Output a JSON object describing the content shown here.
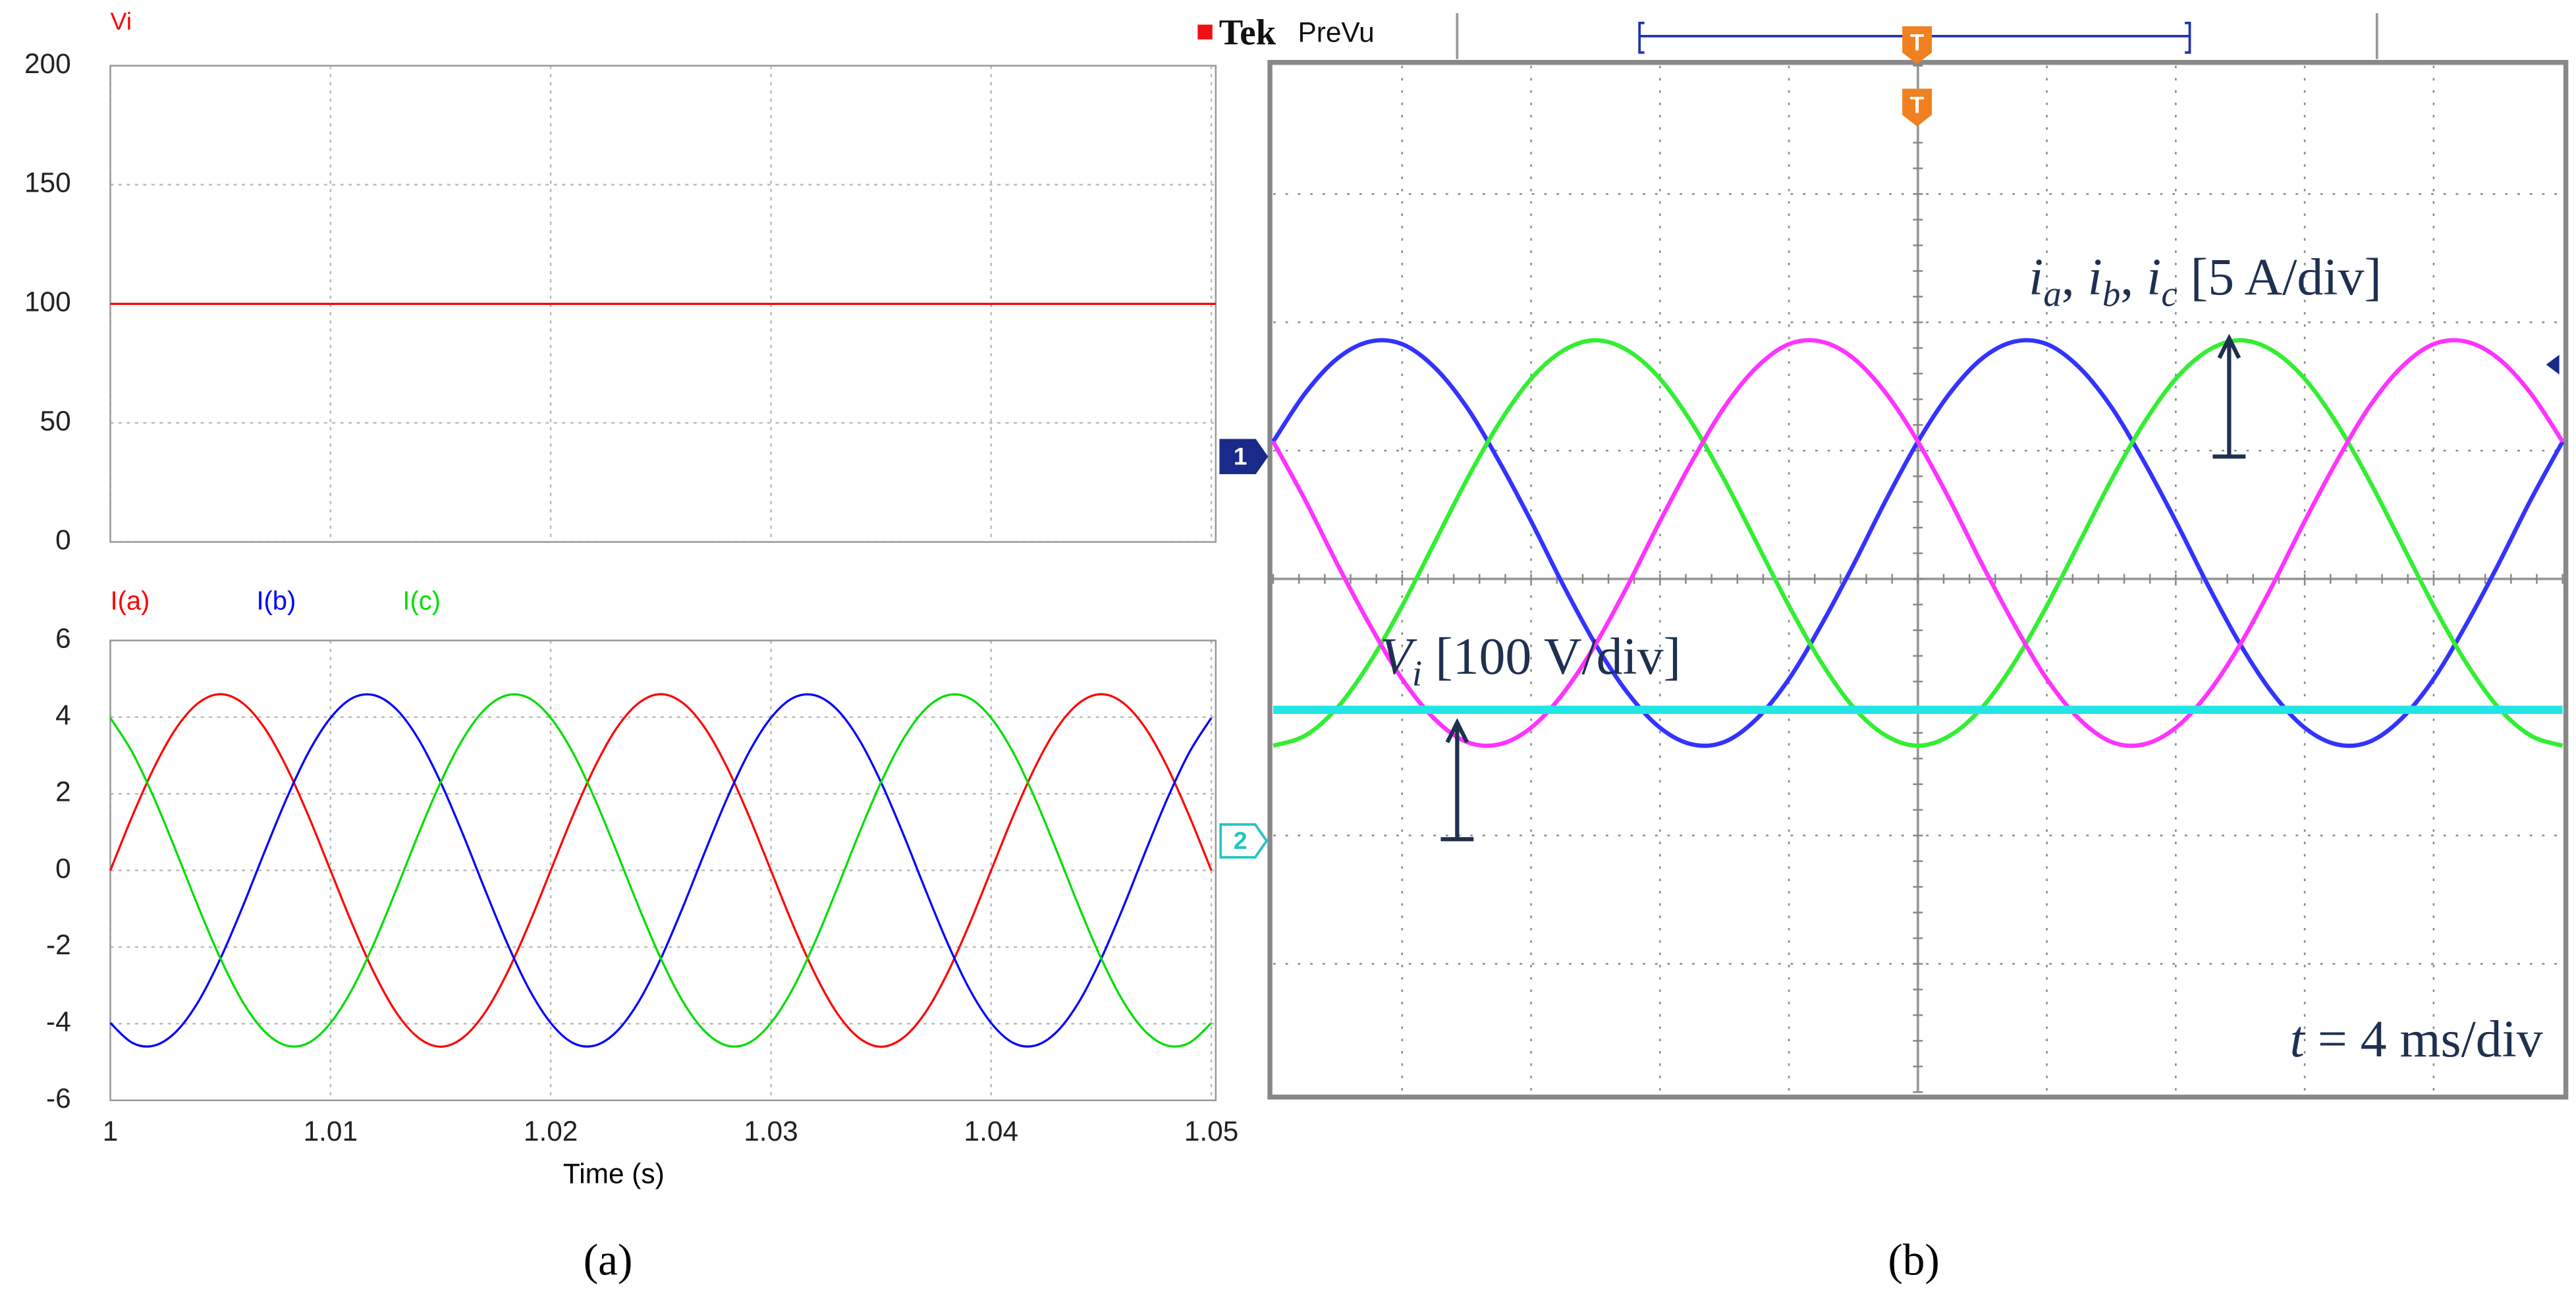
{
  "chart_data": [
    {
      "type": "line",
      "title": "Vi",
      "color": "#ff0000",
      "x": [
        1,
        1.0502
      ],
      "values": [
        100,
        100
      ],
      "xlim": [
        1,
        1.0502
      ],
      "xticks": [
        1,
        1.01,
        1.02,
        1.03,
        1.04,
        1.05
      ],
      "ylim": [
        0,
        200
      ],
      "yticks": [
        0,
        50,
        100,
        150,
        200
      ],
      "grid": true
    },
    {
      "type": "line",
      "xlabel": "Time (s)",
      "x": [
        1,
        1.001,
        1.002,
        1.003,
        1.004,
        1.005,
        1.006,
        1.007,
        1.008,
        1.009,
        1.01,
        1.011,
        1.012,
        1.013,
        1.014,
        1.015,
        1.016,
        1.017,
        1.018,
        1.019,
        1.02,
        1.021,
        1.022,
        1.023,
        1.024,
        1.025,
        1.026,
        1.027,
        1.028,
        1.029,
        1.03,
        1.031,
        1.032,
        1.033,
        1.034,
        1.035,
        1.036,
        1.037,
        1.038,
        1.039,
        1.04,
        1.041,
        1.042,
        1.043,
        1.044,
        1.045,
        1.046,
        1.047,
        1.048,
        1.049,
        1.05
      ],
      "series": [
        {
          "name": "I(a)",
          "color": "#ff0000",
          "values": [
            0,
            1.42,
            2.7,
            3.72,
            4.37,
            4.6,
            4.37,
            3.72,
            2.7,
            1.42,
            0,
            -1.42,
            -2.7,
            -3.72,
            -4.37,
            -4.6,
            -4.37,
            -3.72,
            -2.7,
            -1.42,
            0,
            1.42,
            2.7,
            3.72,
            4.37,
            4.6,
            4.37,
            3.72,
            2.7,
            1.42,
            0,
            -1.42,
            -2.7,
            -3.72,
            -4.37,
            -4.6,
            -4.37,
            -3.72,
            -2.7,
            -1.42,
            0,
            1.42,
            2.7,
            3.72,
            4.37,
            4.6,
            4.37,
            3.72,
            2.7,
            1.42,
            0
          ]
        },
        {
          "name": "I(b)",
          "color": "#0000ff",
          "values": [
            -3.98,
            -4.5,
            -4.57,
            -4.2,
            -3.42,
            -2.3,
            -0.96,
            0.48,
            1.87,
            3.08,
            3.98,
            4.5,
            4.57,
            4.2,
            3.42,
            2.3,
            0.96,
            -0.48,
            -1.87,
            -3.08,
            -3.98,
            -4.5,
            -4.57,
            -4.2,
            -3.42,
            -2.3,
            -0.96,
            0.48,
            1.87,
            3.08,
            3.98,
            4.5,
            4.57,
            4.2,
            3.42,
            2.3,
            0.96,
            -0.48,
            -1.87,
            -3.08,
            -3.98,
            -4.5,
            -4.57,
            -4.2,
            -3.42,
            -2.3,
            -0.96,
            0.48,
            1.87,
            3.08,
            3.98
          ]
        },
        {
          "name": "I(c)",
          "color": "#00dd00",
          "values": [
            3.98,
            3.08,
            1.87,
            0.48,
            -0.96,
            -2.3,
            -3.42,
            -4.2,
            -4.57,
            -4.5,
            -3.98,
            -3.08,
            -1.87,
            -0.48,
            0.96,
            2.3,
            3.42,
            4.2,
            4.57,
            4.5,
            3.98,
            3.08,
            1.87,
            0.48,
            -0.96,
            -2.3,
            -3.42,
            -4.2,
            -4.57,
            -4.5,
            -3.98,
            -3.08,
            -1.87,
            -0.48,
            0.96,
            2.3,
            3.42,
            4.2,
            4.57,
            4.5,
            3.98,
            3.08,
            1.87,
            0.48,
            -0.96,
            -2.3,
            -3.42,
            -4.2,
            -4.57,
            -4.5,
            -3.98
          ]
        }
      ],
      "xlim": [
        1,
        1.0502
      ],
      "xticks": [
        1,
        1.01,
        1.02,
        1.03,
        1.04,
        1.05
      ],
      "ylim": [
        -6,
        6
      ],
      "yticks": [
        -6,
        -4,
        -2,
        0,
        2,
        4,
        6
      ],
      "grid": true
    },
    {
      "type": "scope",
      "header": "Tek",
      "mode": "PreVu",
      "trigger": "T",
      "channels": [
        "1",
        "2"
      ],
      "x": [
        0,
        1,
        2,
        3,
        4,
        5,
        6,
        7,
        8,
        9,
        10,
        11,
        12,
        13,
        14,
        15,
        16,
        17,
        18,
        19,
        20,
        21,
        22,
        23,
        24,
        25,
        26,
        27,
        28,
        29,
        30,
        31,
        32,
        33,
        34,
        35,
        36,
        37,
        38,
        39,
        40
      ],
      "xlim": [
        0,
        40
      ],
      "ylim": [
        -4,
        4
      ],
      "series": [
        {
          "color": "#3333ff",
          "values": [
            1.07,
            1.45,
            1.72,
            1.85,
            1.83,
            1.65,
            1.34,
            0.92,
            0.45,
            -0.05,
            -0.51,
            -0.89,
            -1.16,
            -1.29,
            -1.27,
            -1.09,
            -0.78,
            -0.36,
            0.11,
            0.61,
            1.07,
            1.45,
            1.72,
            1.85,
            1.83,
            1.65,
            1.34,
            0.92,
            0.45,
            -0.05,
            -0.51,
            -0.89,
            -1.16,
            -1.29,
            -1.27,
            -1.09,
            -0.78,
            -0.36,
            0.11,
            0.61,
            1.07
          ]
        },
        {
          "color": "#33ee33",
          "values": [
            -1.3,
            -1.22,
            -1.0,
            -0.65,
            -0.21,
            0.28,
            0.77,
            1.21,
            1.56,
            1.78,
            1.86,
            1.78,
            1.56,
            1.21,
            0.77,
            0.28,
            -0.21,
            -0.65,
            -1.0,
            -1.22,
            -1.3,
            -1.22,
            -1.0,
            -0.65,
            -0.21,
            0.28,
            0.77,
            1.21,
            1.56,
            1.78,
            1.86,
            1.78,
            1.56,
            1.21,
            0.77,
            0.28,
            -0.21,
            -0.65,
            -1.0,
            -1.22,
            -1.3
          ]
        },
        {
          "color": "#ff33ff",
          "values": [
            1.07,
            0.61,
            0.11,
            -0.36,
            -0.78,
            -1.09,
            -1.27,
            -1.29,
            -1.16,
            -0.89,
            -0.51,
            -0.05,
            0.45,
            0.92,
            1.34,
            1.65,
            1.83,
            1.85,
            1.72,
            1.45,
            1.07,
            0.61,
            0.11,
            -0.36,
            -0.78,
            -1.09,
            -1.27,
            -1.29,
            -1.16,
            -0.89,
            -0.51,
            -0.05,
            0.45,
            0.92,
            1.34,
            1.65,
            1.83,
            1.85,
            1.72,
            1.45,
            1.07
          ]
        },
        {
          "color": "#22e5e5",
          "values": [
            -1.02,
            -1.02,
            -1.02,
            -1.02,
            -1.02,
            -1.02,
            -1.02,
            -1.02,
            -1.02,
            -1.02,
            -1.02,
            -1.02,
            -1.02,
            -1.02,
            -1.02,
            -1.02,
            -1.02,
            -1.02,
            -1.02,
            -1.02,
            -1.02,
            -1.02,
            -1.02,
            -1.02,
            -1.02,
            -1.02,
            -1.02,
            -1.02,
            -1.02,
            -1.02,
            -1.02,
            -1.02,
            -1.02,
            -1.02,
            -1.02,
            -1.02,
            -1.02,
            -1.02,
            -1.02,
            -1.02,
            -1.02
          ]
        }
      ],
      "annotations": [
        [
          "i",
          "a",
          ", ",
          "i",
          "b",
          ", ",
          "i",
          "c",
          " [5 A/div]"
        ],
        [
          "V",
          "i",
          " [100 V/div]"
        ],
        [
          "t",
          " = 4 ms/div"
        ]
      ]
    }
  ],
  "captions": [
    "(a)",
    "(b)"
  ]
}
